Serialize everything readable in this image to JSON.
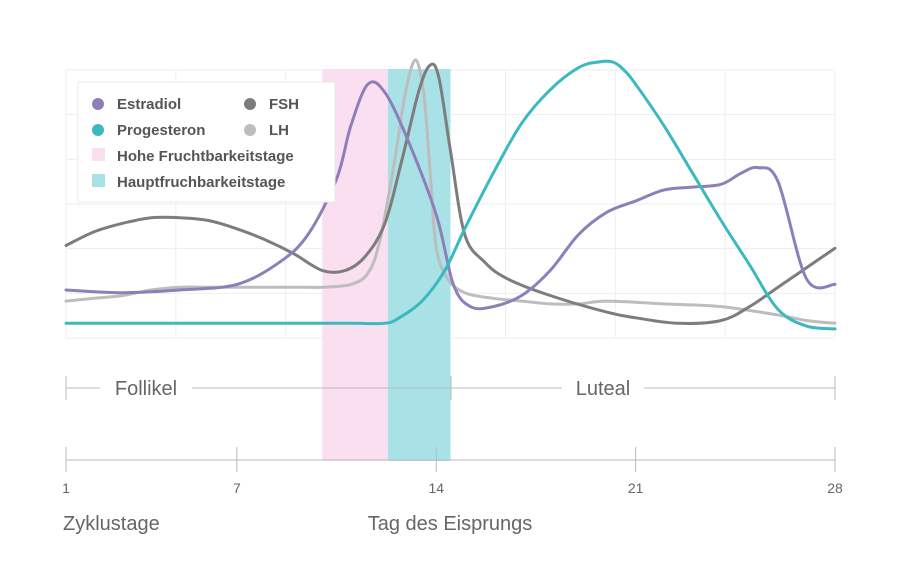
{
  "chart_data": {
    "type": "line",
    "xlabel": "Zyklustage",
    "ovulation_label": "Tag des Eisprungs",
    "x_ticks": [
      1,
      7,
      14,
      21,
      28
    ],
    "xlim": [
      1,
      28
    ],
    "grid": true,
    "legend_position": "top-left",
    "phases": [
      {
        "label": "Follikel",
        "from": 1,
        "to": 14
      },
      {
        "label": "Luteal",
        "from": 14,
        "to": 28
      }
    ],
    "bands": [
      {
        "name": "Hohe Fruchtbarkeitstage",
        "from": 10.0,
        "to": 12.3,
        "color": "#f9dff0"
      },
      {
        "name": "Hauptfruchbarkeitstage",
        "from": 12.3,
        "to": 14.5,
        "color": "#a8e1e6"
      }
    ],
    "series": [
      {
        "name": "Estradiol",
        "color": "#8e7fbb",
        "x": [
          1,
          3,
          5,
          7,
          8.5,
          9.5,
          10.5,
          11,
          11.6,
          12.2,
          13,
          14,
          14.6,
          15.2,
          16,
          17,
          18,
          19,
          20,
          21,
          22,
          23,
          24,
          24.7,
          25.3,
          26,
          27,
          28
        ],
        "y": [
          0.18,
          0.17,
          0.18,
          0.2,
          0.28,
          0.38,
          0.58,
          0.77,
          0.92,
          0.89,
          0.72,
          0.45,
          0.2,
          0.12,
          0.12,
          0.16,
          0.25,
          0.38,
          0.46,
          0.5,
          0.54,
          0.55,
          0.56,
          0.6,
          0.62,
          0.57,
          0.22,
          0.2
        ]
      },
      {
        "name": "Progesteron",
        "color": "#3bb9c1",
        "x": [
          1,
          5,
          9,
          11,
          12.2,
          12.7,
          13.5,
          14.3,
          15,
          16,
          17,
          18,
          19,
          19.7,
          20.2,
          20.6,
          21,
          22,
          23,
          24,
          25,
          26,
          27,
          28
        ],
        "y": [
          0.06,
          0.06,
          0.06,
          0.06,
          0.06,
          0.08,
          0.14,
          0.25,
          0.4,
          0.6,
          0.78,
          0.9,
          0.98,
          1.0,
          1.0,
          0.97,
          0.92,
          0.77,
          0.6,
          0.43,
          0.27,
          0.11,
          0.05,
          0.04
        ]
      },
      {
        "name": "FSH",
        "color": "#7d7d7d",
        "x": [
          1,
          2,
          3,
          4,
          5,
          6,
          7,
          8,
          9,
          10,
          10.8,
          11.5,
          12.2,
          12.8,
          13.4,
          13.8,
          14.1,
          14.5,
          15,
          15.7,
          16.5,
          18,
          20,
          21,
          22.5,
          24,
          25,
          26,
          27,
          28
        ],
        "y": [
          0.34,
          0.39,
          0.42,
          0.44,
          0.44,
          0.43,
          0.4,
          0.36,
          0.31,
          0.25,
          0.25,
          0.3,
          0.42,
          0.65,
          0.9,
          0.99,
          0.94,
          0.68,
          0.38,
          0.28,
          0.22,
          0.16,
          0.1,
          0.08,
          0.06,
          0.07,
          0.12,
          0.19,
          0.26,
          0.33
        ]
      },
      {
        "name": "LH",
        "color": "#bdbdbd",
        "x": [
          1,
          2,
          3,
          4,
          5,
          6,
          7,
          8,
          9,
          10,
          11,
          11.6,
          12,
          12.5,
          12.9,
          13.2,
          13.4,
          13.6,
          13.8,
          14,
          14.4,
          15,
          16,
          17,
          18,
          19,
          20,
          22,
          24,
          26,
          27,
          28
        ],
        "y": [
          0.14,
          0.15,
          0.16,
          0.18,
          0.19,
          0.19,
          0.19,
          0.19,
          0.19,
          0.19,
          0.2,
          0.24,
          0.35,
          0.62,
          0.88,
          1.0,
          0.98,
          0.85,
          0.58,
          0.33,
          0.22,
          0.17,
          0.15,
          0.14,
          0.13,
          0.13,
          0.14,
          0.13,
          0.12,
          0.09,
          0.07,
          0.06
        ]
      }
    ]
  }
}
